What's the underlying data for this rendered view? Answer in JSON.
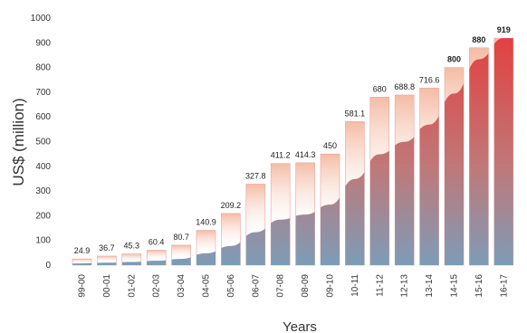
{
  "chart_data": {
    "type": "bar",
    "xlabel": "Years",
    "ylabel": "US$ (million)",
    "ylim": [
      0,
      1000
    ],
    "yticks": [
      0,
      100,
      200,
      300,
      400,
      500,
      600,
      700,
      800,
      900,
      1000
    ],
    "categories": [
      "99-00",
      "00-01",
      "01-02",
      "02-03",
      "03-04",
      "04-05",
      "05-06",
      "06-07",
      "07-08",
      "08-09",
      "09-10",
      "10-11",
      "11-12",
      "12-13",
      "13-14",
      "14-15",
      "15-16",
      "16-17"
    ],
    "values": [
      24.9,
      36.7,
      45.3,
      60.4,
      80.7,
      140.9,
      209.2,
      327.8,
      411.2,
      414.3,
      450,
      581.1,
      680,
      688.8,
      716.6,
      800,
      880,
      919
    ],
    "data_labels": [
      "24.9",
      "36.7",
      "45.3",
      "60.4",
      "80.7",
      "140.9",
      "209.2",
      "327.8",
      "411.2",
      "414.3",
      "450",
      "581.1",
      "680",
      "688.8",
      "716.6",
      "800",
      "880",
      "919"
    ],
    "bold_labels": [
      "800",
      "880",
      "919"
    ],
    "legend": "none",
    "grid": false,
    "colors": {
      "bar_bottom": "#7d9cb8",
      "bar_middle": "#c07878",
      "bar_top": "#e83838",
      "bar_fade": "#f4b8a0",
      "bar_outline": "#e6a6a6"
    }
  }
}
